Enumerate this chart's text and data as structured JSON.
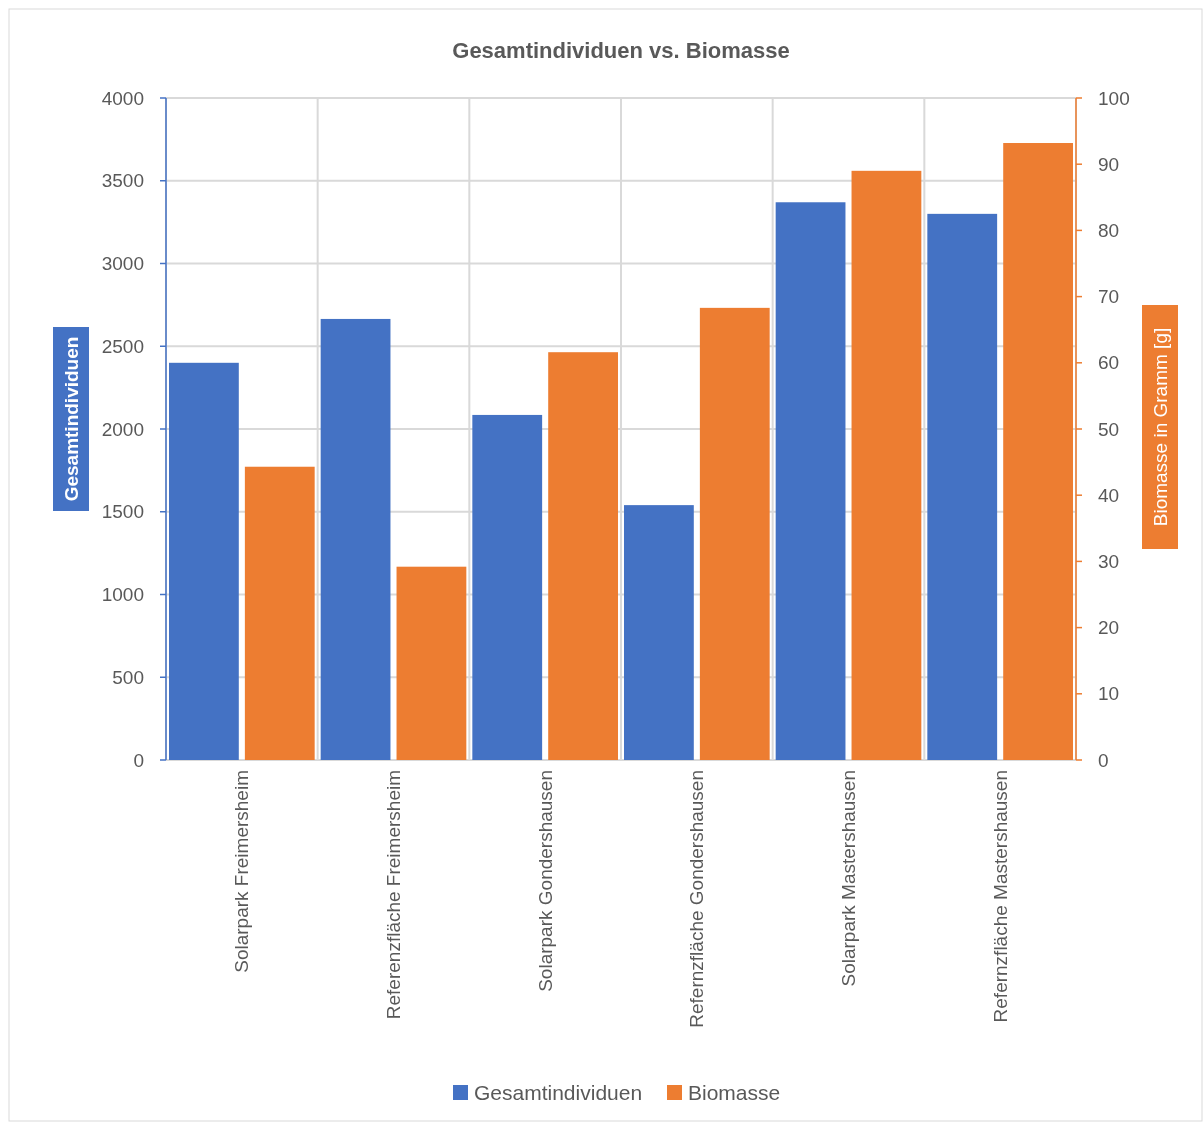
{
  "chart_data": {
    "type": "bar",
    "title": "Gesamtindividuen vs. Biomasse",
    "ylabel": "Gesamtindividuen",
    "y2label": "Biomasse in Gramm [g]",
    "categories": [
      "Solarpark Freimersheim",
      "Referenzfläche Freimersheim",
      "Solarpark Gondershausen",
      "Refernzfläche Gondershausen",
      "Solarpark Mastershausen",
      "Refernzfläche Mastershausen"
    ],
    "series": [
      {
        "name": "Gesamtindividuen",
        "color": "#4472c4",
        "values": [
          2400,
          2665,
          2085,
          1540,
          3370,
          3300
        ]
      },
      {
        "name": "Biomasse",
        "color": "#ed7d31",
        "axis": "y2",
        "values": [
          44.3,
          29.2,
          61.6,
          68.3,
          89,
          93.2
        ]
      }
    ],
    "ylim": [
      0,
      4000
    ],
    "yticks": [
      0,
      500,
      1000,
      1500,
      2000,
      2500,
      3000,
      3500,
      4000
    ],
    "y2lim": [
      0,
      100
    ],
    "y2ticks": [
      0,
      10,
      20,
      30,
      40,
      50,
      60,
      70,
      80,
      90,
      100
    ],
    "grid": true,
    "legend": "bottom"
  }
}
